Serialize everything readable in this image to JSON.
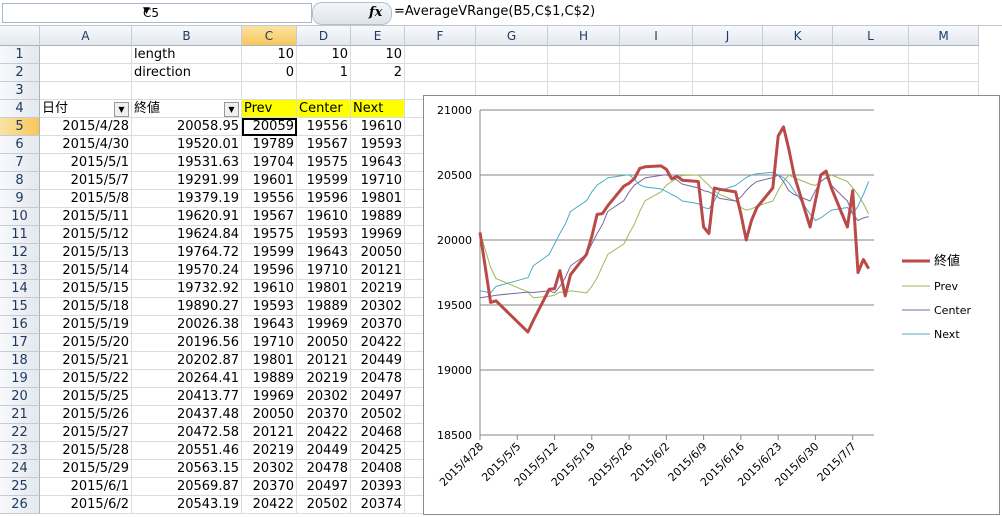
{
  "formula_bar": {
    "name_box": "C5",
    "fx_symbol": "fx",
    "formula": "=AverageVRange(B5,C$1,C$2)"
  },
  "columns": [
    "A",
    "B",
    "C",
    "D",
    "E",
    "F",
    "G",
    "H",
    "I",
    "J",
    "K",
    "L",
    "M"
  ],
  "selected_column": "C",
  "selected_row": 5,
  "param_rows": [
    {
      "row": 1,
      "label": "length",
      "c": "10",
      "d": "10",
      "e": "10"
    },
    {
      "row": 2,
      "label": "direction",
      "c": "0",
      "d": "1",
      "e": "2"
    }
  ],
  "header_row": {
    "row": 4,
    "date": "日付",
    "close": "終値",
    "prev": "Prev",
    "center": "Center",
    "next": "Next"
  },
  "data_rows": [
    {
      "row": 5,
      "date": "2015/4/28",
      "close": "20058.95",
      "prev": "20059",
      "center": "19556",
      "next": "19610"
    },
    {
      "row": 6,
      "date": "2015/4/30",
      "close": "19520.01",
      "prev": "19789",
      "center": "19567",
      "next": "19593"
    },
    {
      "row": 7,
      "date": "2015/5/1",
      "close": "19531.63",
      "prev": "19704",
      "center": "19575",
      "next": "19643"
    },
    {
      "row": 8,
      "date": "2015/5/7",
      "close": "19291.99",
      "prev": "19601",
      "center": "19599",
      "next": "19710"
    },
    {
      "row": 9,
      "date": "2015/5/8",
      "close": "19379.19",
      "prev": "19556",
      "center": "19596",
      "next": "19801"
    },
    {
      "row": 10,
      "date": "2015/5/11",
      "close": "19620.91",
      "prev": "19567",
      "center": "19610",
      "next": "19889"
    },
    {
      "row": 11,
      "date": "2015/5/12",
      "close": "19624.84",
      "prev": "19575",
      "center": "19593",
      "next": "19969"
    },
    {
      "row": 12,
      "date": "2015/5/13",
      "close": "19764.72",
      "prev": "19599",
      "center": "19643",
      "next": "20050"
    },
    {
      "row": 13,
      "date": "2015/5/14",
      "close": "19570.24",
      "prev": "19596",
      "center": "19710",
      "next": "20121"
    },
    {
      "row": 14,
      "date": "2015/5/15",
      "close": "19732.92",
      "prev": "19610",
      "center": "19801",
      "next": "20219"
    },
    {
      "row": 15,
      "date": "2015/5/18",
      "close": "19890.27",
      "prev": "19593",
      "center": "19889",
      "next": "20302"
    },
    {
      "row": 16,
      "date": "2015/5/19",
      "close": "20026.38",
      "prev": "19643",
      "center": "19969",
      "next": "20370"
    },
    {
      "row": 17,
      "date": "2015/5/20",
      "close": "20196.56",
      "prev": "19710",
      "center": "20050",
      "next": "20422"
    },
    {
      "row": 18,
      "date": "2015/5/21",
      "close": "20202.87",
      "prev": "19801",
      "center": "20121",
      "next": "20449"
    },
    {
      "row": 19,
      "date": "2015/5/22",
      "close": "20264.41",
      "prev": "19889",
      "center": "20219",
      "next": "20478"
    },
    {
      "row": 20,
      "date": "2015/5/25",
      "close": "20413.77",
      "prev": "19969",
      "center": "20302",
      "next": "20497"
    },
    {
      "row": 21,
      "date": "2015/5/26",
      "close": "20437.48",
      "prev": "20050",
      "center": "20370",
      "next": "20502"
    },
    {
      "row": 22,
      "date": "2015/5/27",
      "close": "20472.58",
      "prev": "20121",
      "center": "20422",
      "next": "20468"
    },
    {
      "row": 23,
      "date": "2015/5/28",
      "close": "20551.46",
      "prev": "20219",
      "center": "20449",
      "next": "20425"
    },
    {
      "row": 24,
      "date": "2015/5/29",
      "close": "20563.15",
      "prev": "20302",
      "center": "20478",
      "next": "20408"
    },
    {
      "row": 25,
      "date": "2015/6/1",
      "close": "20569.87",
      "prev": "20370",
      "center": "20497",
      "next": "20393"
    },
    {
      "row": 26,
      "date": "2015/6/2",
      "close": "20543.19",
      "prev": "20422",
      "center": "20502",
      "next": "20374"
    }
  ],
  "chart_data": {
    "type": "line",
    "ylim": [
      18500,
      21000
    ],
    "y_ticks": [
      "21000",
      "20500",
      "20000",
      "19500",
      "19000",
      "18500"
    ],
    "y_tick_values": [
      21000,
      20500,
      20000,
      19500,
      19000,
      18500
    ],
    "x_tick_labels": [
      "2015/4/28",
      "2015/5/5",
      "2015/5/12",
      "2015/5/19",
      "2015/5/26",
      "2015/6/2",
      "2015/6/9",
      "2015/6/16",
      "2015/6/23",
      "2015/6/30",
      "2015/7/7"
    ],
    "x_tick_days": [
      0,
      7,
      14,
      21,
      28,
      35,
      42,
      49,
      56,
      63,
      70
    ],
    "x_max_day": 74,
    "legend_position": "right",
    "series": [
      {
        "name": "終値",
        "color": "#b94a48",
        "width": 3,
        "x": [
          0,
          2,
          3,
          9,
          10,
          13,
          14,
          15,
          16,
          17,
          20,
          21,
          22,
          23,
          24,
          27,
          28,
          29,
          30,
          31,
          34,
          35,
          36,
          37,
          38,
          41,
          42,
          43,
          44,
          45,
          48,
          49,
          50,
          51,
          52,
          55,
          56,
          57,
          58,
          59,
          62,
          63,
          64,
          65,
          66,
          69,
          70,
          71,
          72,
          73
        ],
        "y": [
          20059,
          19520,
          19532,
          19292,
          19379,
          19621,
          19625,
          19765,
          19570,
          19733,
          19890,
          20026,
          20197,
          20203,
          20264,
          20414,
          20437,
          20473,
          20551,
          20563,
          20570,
          20543,
          20470,
          20490,
          20460,
          20450,
          20100,
          20050,
          20400,
          20390,
          20370,
          20200,
          20000,
          20150,
          20250,
          20400,
          20800,
          20870,
          20700,
          20500,
          20100,
          20300,
          20500,
          20530,
          20400,
          20100,
          20380,
          19750,
          19850,
          19780
        ]
      },
      {
        "name": "Prev",
        "color": "#9bbb59",
        "width": 1,
        "x": [
          0,
          2,
          3,
          9,
          10,
          13,
          14,
          15,
          16,
          17,
          20,
          21,
          22,
          23,
          24,
          27,
          28,
          29,
          30,
          31,
          34,
          35,
          36,
          37,
          38,
          41,
          42,
          43,
          44,
          45,
          48,
          49,
          50,
          51,
          52,
          55,
          56,
          57,
          58,
          59,
          62,
          63,
          64,
          65,
          66,
          69,
          70,
          71,
          72,
          73
        ],
        "y": [
          20059,
          19789,
          19704,
          19601,
          19556,
          19567,
          19575,
          19599,
          19596,
          19610,
          19593,
          19643,
          19710,
          19801,
          19889,
          19969,
          20050,
          20121,
          20219,
          20302,
          20370,
          20422,
          20449,
          20478,
          20497,
          20500,
          20460,
          20420,
          20380,
          20350,
          20300,
          20250,
          20230,
          20240,
          20260,
          20300,
          20380,
          20450,
          20500,
          20480,
          20430,
          20420,
          20450,
          20480,
          20500,
          20450,
          20400,
          20350,
          20280,
          20200
        ]
      },
      {
        "name": "Center",
        "color": "#8064a2",
        "width": 1,
        "x": [
          0,
          2,
          3,
          9,
          10,
          13,
          14,
          15,
          16,
          17,
          20,
          21,
          22,
          23,
          24,
          27,
          28,
          29,
          30,
          31,
          34,
          35,
          36,
          37,
          38,
          41,
          42,
          43,
          44,
          45,
          48,
          49,
          50,
          51,
          52,
          55,
          56,
          57,
          58,
          59,
          62,
          63,
          64,
          65,
          66,
          69,
          70,
          71,
          72,
          73
        ],
        "y": [
          19556,
          19567,
          19575,
          19599,
          19596,
          19610,
          19593,
          19643,
          19710,
          19801,
          19889,
          19969,
          20050,
          20121,
          20219,
          20302,
          20370,
          20422,
          20449,
          20478,
          20497,
          20502,
          20480,
          20460,
          20430,
          20400,
          20380,
          20370,
          20350,
          20320,
          20300,
          20330,
          20380,
          20420,
          20450,
          20480,
          20500,
          20450,
          20380,
          20350,
          20300,
          20380,
          20450,
          20480,
          20420,
          20300,
          20200,
          20150,
          20170,
          20180
        ]
      },
      {
        "name": "Next",
        "color": "#4bacc6",
        "width": 1,
        "x": [
          0,
          2,
          3,
          9,
          10,
          13,
          14,
          15,
          16,
          17,
          20,
          21,
          22,
          23,
          24,
          27,
          28,
          29,
          30,
          31,
          34,
          35,
          36,
          37,
          38,
          41,
          42,
          43,
          44,
          45,
          48,
          49,
          50,
          51,
          52,
          55,
          56,
          57,
          58,
          59,
          62,
          63,
          64,
          65,
          66,
          69,
          70,
          71,
          72,
          73
        ],
        "y": [
          19610,
          19593,
          19643,
          19710,
          19801,
          19889,
          19969,
          20050,
          20121,
          20219,
          20302,
          20370,
          20422,
          20449,
          20478,
          20497,
          20502,
          20468,
          20425,
          20408,
          20393,
          20374,
          20350,
          20330,
          20300,
          20280,
          20250,
          20240,
          20300,
          20380,
          20420,
          20450,
          20480,
          20500,
          20510,
          20520,
          20500,
          20480,
          20440,
          20380,
          20200,
          20150,
          20170,
          20200,
          20230,
          20250,
          20200,
          20260,
          20350,
          20450
        ]
      }
    ]
  }
}
